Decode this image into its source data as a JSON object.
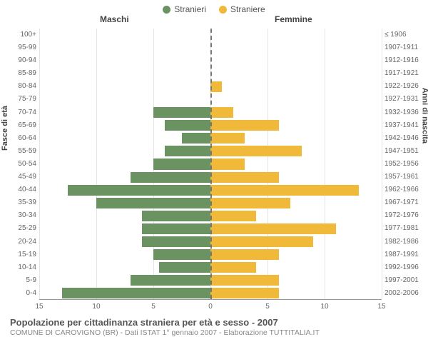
{
  "legend": {
    "male": {
      "label": "Stranieri",
      "color": "#6b9362"
    },
    "female": {
      "label": "Straniere",
      "color": "#f0b93a"
    }
  },
  "headers": {
    "male": "Maschi",
    "female": "Femmine"
  },
  "axis": {
    "left_title": "Fasce di età",
    "right_title": "Anni di nascita",
    "xlim": 15,
    "xticks_left": [
      15,
      10,
      5,
      0
    ],
    "xticks_right": [
      0,
      5,
      10,
      15
    ]
  },
  "colors": {
    "male_bar": "#6b9362",
    "female_bar": "#f0b93a",
    "grid": "#e5e5e5",
    "center_line": "#777777",
    "background": "#ffffff"
  },
  "rows": [
    {
      "age": "100+",
      "birth": "≤ 1906",
      "m": 0,
      "f": 0
    },
    {
      "age": "95-99",
      "birth": "1907-1911",
      "m": 0,
      "f": 0
    },
    {
      "age": "90-94",
      "birth": "1912-1916",
      "m": 0,
      "f": 0
    },
    {
      "age": "85-89",
      "birth": "1917-1921",
      "m": 0,
      "f": 0
    },
    {
      "age": "80-84",
      "birth": "1922-1926",
      "m": 0,
      "f": 1
    },
    {
      "age": "75-79",
      "birth": "1927-1931",
      "m": 0,
      "f": 0
    },
    {
      "age": "70-74",
      "birth": "1932-1936",
      "m": 5,
      "f": 2
    },
    {
      "age": "65-69",
      "birth": "1937-1941",
      "m": 4,
      "f": 6
    },
    {
      "age": "60-64",
      "birth": "1942-1946",
      "m": 2.5,
      "f": 3
    },
    {
      "age": "55-59",
      "birth": "1947-1951",
      "m": 4,
      "f": 8
    },
    {
      "age": "50-54",
      "birth": "1952-1956",
      "m": 5,
      "f": 3
    },
    {
      "age": "45-49",
      "birth": "1957-1961",
      "m": 7,
      "f": 6
    },
    {
      "age": "40-44",
      "birth": "1962-1966",
      "m": 12.5,
      "f": 13
    },
    {
      "age": "35-39",
      "birth": "1967-1971",
      "m": 10,
      "f": 7
    },
    {
      "age": "30-34",
      "birth": "1972-1976",
      "m": 6,
      "f": 4
    },
    {
      "age": "25-29",
      "birth": "1977-1981",
      "m": 6,
      "f": 11
    },
    {
      "age": "20-24",
      "birth": "1982-1986",
      "m": 6,
      "f": 9
    },
    {
      "age": "15-19",
      "birth": "1987-1991",
      "m": 5,
      "f": 6
    },
    {
      "age": "10-14",
      "birth": "1992-1996",
      "m": 4.5,
      "f": 4
    },
    {
      "age": "5-9",
      "birth": "1997-2001",
      "m": 7,
      "f": 6
    },
    {
      "age": "0-4",
      "birth": "2002-2006",
      "m": 13,
      "f": 6
    }
  ],
  "footer": {
    "title": "Popolazione per cittadinanza straniera per età e sesso - 2007",
    "subtitle": "COMUNE DI CAROVIGNO (BR) - Dati ISTAT 1° gennaio 2007 - Elaborazione TUTTITALIA.IT"
  }
}
